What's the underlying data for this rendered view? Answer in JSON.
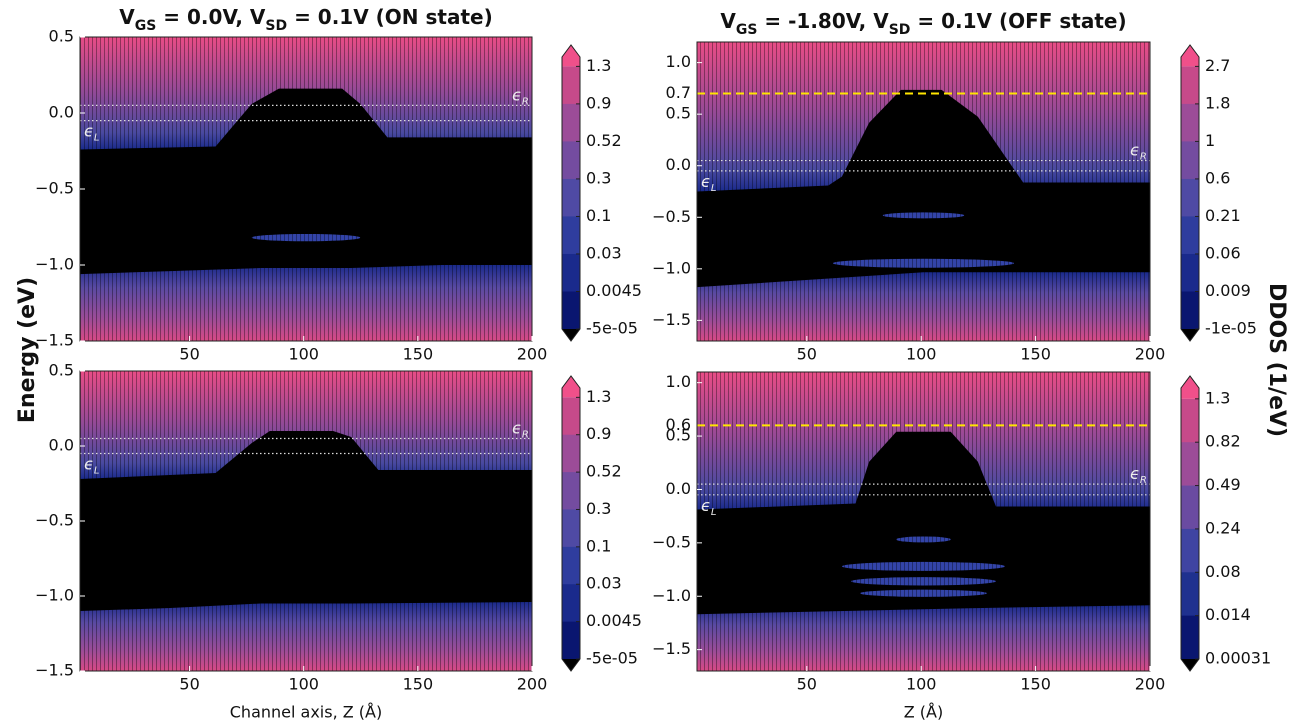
{
  "figure_labels": {
    "ylabel": "Energy (eV)",
    "colorbar_label": "DDOS (1/eV)"
  },
  "chart_data": [
    {
      "type": "heatmap",
      "title": [
        {
          "text": "V"
        },
        {
          "text": "GS",
          "sub": true
        },
        {
          "text": " = 0.0V,  V"
        },
        {
          "text": "SD",
          "sub": true
        },
        {
          "text": " = 0.1V  (ON state)"
        }
      ],
      "xlim": [
        2,
        200
      ],
      "xticks": [
        50,
        100,
        150,
        200
      ],
      "ylim": [
        -1.5,
        0.5
      ],
      "yticks": [
        0.5,
        {
          "value": 0,
          "label": "0.0"
        },
        {
          "value": -0.5,
          "label": "−0.5"
        },
        {
          "value": -1,
          "label": "−1.0"
        },
        {
          "value": -1.5,
          "label": "−1.5"
        }
      ],
      "fermi_levels": [
        {
          "value": 0.05,
          "symbol": "ϵ",
          "subscript": "R",
          "side": "right"
        },
        {
          "value": -0.05,
          "symbol": "ϵ",
          "subscript": "L",
          "side": "left"
        }
      ],
      "colorbar_ticks": [
        1.3,
        0.9,
        0.52,
        0.3,
        0.1,
        0.03,
        0.0045,
        {
          "value": -5e-05,
          "label": "-5e-05"
        }
      ],
      "colormap": [
        "#000000",
        "#0a1670",
        "#1a2a8c",
        "#2f3d9e",
        "#4f4aa4",
        "#744ca0",
        "#9c4c98",
        "#c64a8a",
        "#f0508a"
      ]
    },
    {
      "type": "heatmap",
      "title": [
        {
          "text": "V"
        },
        {
          "text": "GS",
          "sub": true
        },
        {
          "text": " = -1.80V,  V"
        },
        {
          "text": "SD",
          "sub": true
        },
        {
          "text": " = 0.1V  (OFF state)"
        }
      ],
      "xlim": [
        2,
        200
      ],
      "xticks": [
        50,
        100,
        150,
        200
      ],
      "ylim": [
        -1.7,
        1.2
      ],
      "yticks": [
        {
          "value": -1.5,
          "label": "−1.5"
        },
        {
          "value": -1,
          "label": "−1.0"
        },
        {
          "value": -0.5,
          "label": "−0.5"
        },
        {
          "value": 0,
          "label": "0.0"
        },
        0.5,
        {
          "value": 1,
          "label": "1.0"
        }
      ],
      "fermi_levels": [
        {
          "value": 0.05,
          "symbol": "ϵ",
          "subscript": "R",
          "side": "right"
        },
        {
          "value": -0.05,
          "symbol": "ϵ",
          "subscript": "L",
          "side": "left"
        }
      ],
      "hline": {
        "value": 0.7,
        "color": "#ffe600",
        "label_color": "#e00000"
      },
      "colorbar_ticks": [
        2.7,
        1.8,
        1,
        0.6,
        0.21,
        0.06,
        0.009,
        {
          "value": -1e-05,
          "label": "-1e-05"
        }
      ],
      "colormap": [
        "#000000",
        "#0a1670",
        "#1a2a8c",
        "#2f3d9e",
        "#4f4aa4",
        "#744ca0",
        "#9c4c98",
        "#c64a8a",
        "#f0508a"
      ]
    },
    {
      "type": "heatmap",
      "xlabel": "Channel axis, Z (Å)",
      "xlim": [
        2,
        200
      ],
      "xticks": [
        50,
        100,
        150,
        200
      ],
      "ylim": [
        -1.5,
        0.5
      ],
      "yticks": [
        0.5,
        {
          "value": 0,
          "label": "0.0"
        },
        {
          "value": -0.5,
          "label": "−0.5"
        },
        {
          "value": -1,
          "label": "−1.0"
        },
        {
          "value": -1.5,
          "label": "−1.5"
        }
      ],
      "fermi_levels": [
        {
          "value": 0.05,
          "symbol": "ϵ",
          "subscript": "R",
          "side": "right"
        },
        {
          "value": -0.05,
          "symbol": "ϵ",
          "subscript": "L",
          "side": "left"
        }
      ],
      "colorbar_ticks": [
        1.3,
        0.9,
        0.52,
        0.3,
        0.1,
        0.03,
        0.0045,
        {
          "value": -5e-05,
          "label": "-5e-05"
        }
      ],
      "colormap": [
        "#000000",
        "#0a1670",
        "#1a2a8c",
        "#2f3d9e",
        "#4f4aa4",
        "#744ca0",
        "#9c4c98",
        "#c64a8a",
        "#f0508a"
      ]
    },
    {
      "type": "heatmap",
      "xlabel": "Z (Å)",
      "xlim": [
        2,
        200
      ],
      "xticks": [
        50,
        100,
        150,
        200
      ],
      "ylim": [
        -1.7,
        1.1
      ],
      "yticks": [
        {
          "value": -1.5,
          "label": "−1.5"
        },
        {
          "value": -1,
          "label": "−1.0"
        },
        {
          "value": -0.5,
          "label": "−0.5"
        },
        {
          "value": 0,
          "label": "0.0"
        },
        0.5,
        {
          "value": 1,
          "label": "1.0"
        }
      ],
      "fermi_levels": [
        {
          "value": 0.05,
          "symbol": "ϵ",
          "subscript": "R",
          "side": "right"
        },
        {
          "value": -0.05,
          "symbol": "ϵ",
          "subscript": "L",
          "side": "left"
        }
      ],
      "hline": {
        "value": 0.6,
        "color": "#ffe600",
        "label_color": "#e00000"
      },
      "colorbar_ticks": [
        1.3,
        0.82,
        0.49,
        0.24,
        0.08,
        0.014,
        0.00031
      ],
      "colormap": [
        "#000000",
        "#0a1670",
        "#1f318f",
        "#3f44a2",
        "#6a4ba1",
        "#9c4c98",
        "#c64a8a",
        "#f0508a"
      ]
    }
  ]
}
